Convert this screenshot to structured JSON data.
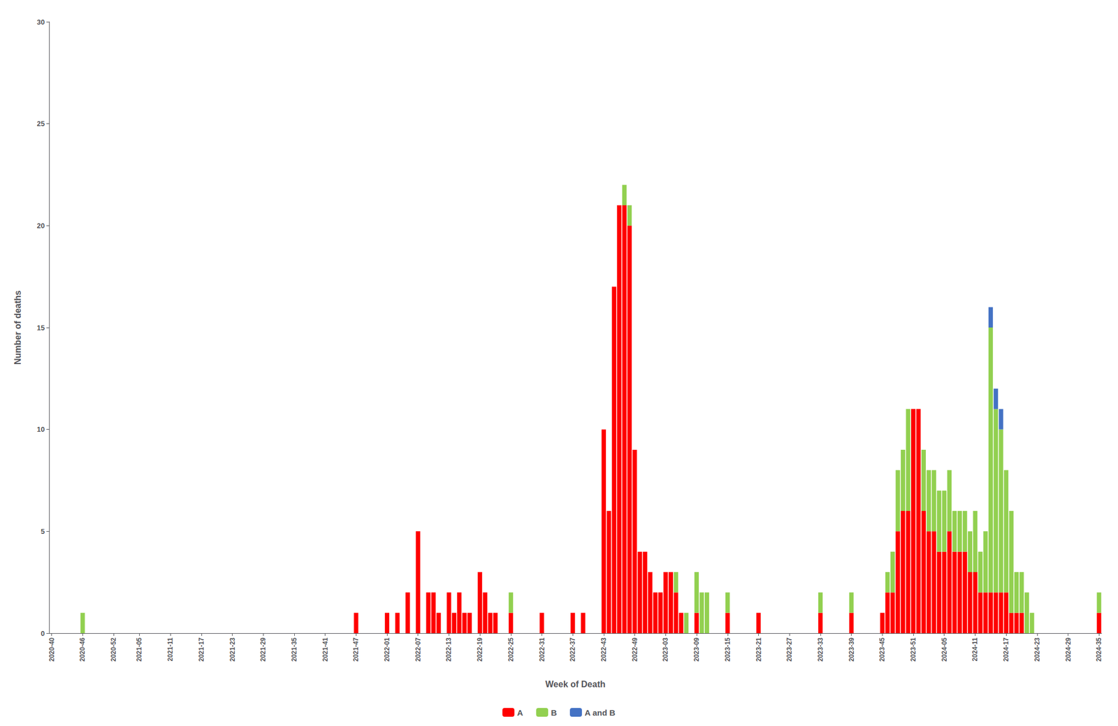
{
  "chart_data": {
    "type": "bar",
    "stacked": true,
    "xlabel": "Week of Death",
    "ylabel": "Number of deaths",
    "ylim": [
      0,
      30
    ],
    "yticks": [
      0,
      5,
      10,
      15,
      20,
      25,
      30
    ],
    "grid": false,
    "legend": "bottom",
    "categories": [
      "2020-40",
      null,
      null,
      null,
      null,
      null,
      "2020-46",
      null,
      null,
      null,
      null,
      null,
      "2020-52",
      null,
      null,
      null,
      null,
      "2021-05",
      null,
      null,
      null,
      null,
      null,
      "2021-11",
      null,
      null,
      null,
      null,
      null,
      "2021-17",
      null,
      null,
      null,
      null,
      null,
      "2021-23",
      null,
      null,
      null,
      null,
      null,
      "2021-29",
      null,
      null,
      null,
      null,
      null,
      "2021-35",
      null,
      null,
      null,
      null,
      null,
      "2021-41",
      null,
      null,
      null,
      null,
      null,
      "2021-47",
      null,
      null,
      null,
      null,
      null,
      "2022-01",
      null,
      null,
      null,
      null,
      null,
      "2022-07",
      null,
      null,
      null,
      null,
      null,
      "2022-13",
      null,
      null,
      null,
      null,
      null,
      "2022-19",
      null,
      null,
      null,
      null,
      null,
      "2022-25",
      null,
      null,
      null,
      null,
      null,
      "2022-31",
      null,
      null,
      null,
      null,
      null,
      "2022-37",
      null,
      null,
      null,
      null,
      null,
      "2022-43",
      null,
      null,
      null,
      null,
      null,
      "2022-49",
      null,
      null,
      null,
      null,
      null,
      "2023-03",
      null,
      null,
      null,
      null,
      null,
      "2023-09",
      null,
      null,
      null,
      null,
      null,
      "2023-15",
      null,
      null,
      null,
      null,
      null,
      "2023-21",
      null,
      null,
      null,
      null,
      null,
      "2023-27",
      null,
      null,
      null,
      null,
      null,
      "2023-33",
      null,
      null,
      null,
      null,
      null,
      "2023-39",
      null,
      null,
      null,
      null,
      null,
      "2023-45",
      null,
      null,
      null,
      null,
      null,
      "2023-51",
      null,
      null,
      null,
      null,
      null,
      "2024-05",
      null,
      null,
      null,
      null,
      null,
      "2024-11",
      null,
      null,
      null,
      null,
      null,
      "2024-17",
      null,
      null,
      null,
      null,
      null,
      "2024-23",
      null,
      null,
      null,
      null,
      null,
      "2024-29",
      null,
      null,
      null,
      null,
      null,
      "2024-35"
    ],
    "series": [
      {
        "name": "A",
        "color": "#FF0000",
        "values": [
          0,
          0,
          0,
          0,
          0,
          0,
          0,
          0,
          0,
          0,
          0,
          0,
          0,
          0,
          0,
          0,
          0,
          0,
          0,
          0,
          0,
          0,
          0,
          0,
          0,
          0,
          0,
          0,
          0,
          0,
          0,
          0,
          0,
          0,
          0,
          0,
          0,
          0,
          0,
          0,
          0,
          0,
          0,
          0,
          0,
          0,
          0,
          0,
          0,
          0,
          0,
          0,
          0,
          0,
          0,
          0,
          0,
          0,
          0,
          1,
          0,
          0,
          0,
          0,
          0,
          1,
          0,
          1,
          0,
          2,
          0,
          5,
          0,
          2,
          2,
          1,
          0,
          2,
          1,
          2,
          1,
          1,
          0,
          3,
          2,
          1,
          1,
          0,
          0,
          1,
          0,
          0,
          0,
          0,
          0,
          1,
          0,
          0,
          0,
          0,
          0,
          1,
          0,
          1,
          0,
          0,
          0,
          10,
          6,
          17,
          21,
          21,
          20,
          9,
          4,
          4,
          3,
          2,
          2,
          3,
          3,
          2,
          1,
          0,
          0,
          1,
          0,
          0,
          0,
          0,
          0,
          1,
          0,
          0,
          0,
          0,
          0,
          1,
          0,
          0,
          0,
          0,
          0,
          0,
          0,
          0,
          0,
          0,
          0,
          1,
          0,
          0,
          0,
          0,
          0,
          1,
          0,
          0,
          0,
          0,
          0,
          1,
          2,
          2,
          5,
          6,
          6,
          11,
          11,
          6,
          5,
          5,
          4,
          4,
          5,
          4,
          4,
          4,
          3,
          3,
          2,
          2,
          2,
          2,
          2,
          2,
          1,
          1,
          1,
          0,
          0,
          0,
          0,
          0,
          0,
          0,
          0,
          0,
          0,
          0,
          0,
          0,
          0,
          1
        ]
      },
      {
        "name": "B",
        "color": "#92D050",
        "values": [
          0,
          0,
          0,
          0,
          0,
          0,
          1,
          0,
          0,
          0,
          0,
          0,
          0,
          0,
          0,
          0,
          0,
          0,
          0,
          0,
          0,
          0,
          0,
          0,
          0,
          0,
          0,
          0,
          0,
          0,
          0,
          0,
          0,
          0,
          0,
          0,
          0,
          0,
          0,
          0,
          0,
          0,
          0,
          0,
          0,
          0,
          0,
          0,
          0,
          0,
          0,
          0,
          0,
          0,
          0,
          0,
          0,
          0,
          0,
          0,
          0,
          0,
          0,
          0,
          0,
          0,
          0,
          0,
          0,
          0,
          0,
          0,
          0,
          0,
          0,
          0,
          0,
          0,
          0,
          0,
          0,
          0,
          0,
          0,
          0,
          0,
          0,
          0,
          0,
          1,
          0,
          0,
          0,
          0,
          0,
          0,
          0,
          0,
          0,
          0,
          0,
          0,
          0,
          0,
          0,
          0,
          0,
          0,
          0,
          0,
          0,
          1,
          1,
          0,
          0,
          0,
          0,
          0,
          0,
          0,
          0,
          1,
          0,
          1,
          0,
          2,
          2,
          2,
          0,
          0,
          0,
          1,
          0,
          0,
          0,
          0,
          0,
          0,
          0,
          0,
          0,
          0,
          0,
          0,
          0,
          0,
          0,
          0,
          0,
          1,
          0,
          0,
          0,
          0,
          0,
          1,
          0,
          0,
          0,
          0,
          0,
          0,
          1,
          2,
          3,
          3,
          5,
          0,
          0,
          3,
          3,
          3,
          3,
          3,
          3,
          2,
          2,
          2,
          2,
          3,
          2,
          3,
          13,
          9,
          8,
          6,
          5,
          2,
          2,
          2,
          1,
          0,
          0,
          0,
          0,
          0,
          0,
          0,
          0,
          0,
          0,
          0,
          0,
          1
        ]
      },
      {
        "name": "A and B",
        "color": "#4472C4",
        "values": [
          0,
          0,
          0,
          0,
          0,
          0,
          0,
          0,
          0,
          0,
          0,
          0,
          0,
          0,
          0,
          0,
          0,
          0,
          0,
          0,
          0,
          0,
          0,
          0,
          0,
          0,
          0,
          0,
          0,
          0,
          0,
          0,
          0,
          0,
          0,
          0,
          0,
          0,
          0,
          0,
          0,
          0,
          0,
          0,
          0,
          0,
          0,
          0,
          0,
          0,
          0,
          0,
          0,
          0,
          0,
          0,
          0,
          0,
          0,
          0,
          0,
          0,
          0,
          0,
          0,
          0,
          0,
          0,
          0,
          0,
          0,
          0,
          0,
          0,
          0,
          0,
          0,
          0,
          0,
          0,
          0,
          0,
          0,
          0,
          0,
          0,
          0,
          0,
          0,
          0,
          0,
          0,
          0,
          0,
          0,
          0,
          0,
          0,
          0,
          0,
          0,
          0,
          0,
          0,
          0,
          0,
          0,
          0,
          0,
          0,
          0,
          0,
          0,
          0,
          0,
          0,
          0,
          0,
          0,
          0,
          0,
          0,
          0,
          0,
          0,
          0,
          0,
          0,
          0,
          0,
          0,
          0,
          0,
          0,
          0,
          0,
          0,
          0,
          0,
          0,
          0,
          0,
          0,
          0,
          0,
          0,
          0,
          0,
          0,
          0,
          0,
          0,
          0,
          0,
          0,
          0,
          0,
          0,
          0,
          0,
          0,
          0,
          0,
          0,
          0,
          0,
          0,
          0,
          0,
          0,
          0,
          0,
          0,
          0,
          0,
          0,
          0,
          0,
          0,
          0,
          0,
          0,
          1,
          1,
          1,
          0,
          0,
          0,
          0,
          0,
          0,
          0,
          0,
          0,
          0,
          0,
          0,
          0,
          0,
          0,
          0,
          0,
          0,
          0
        ]
      }
    ]
  }
}
